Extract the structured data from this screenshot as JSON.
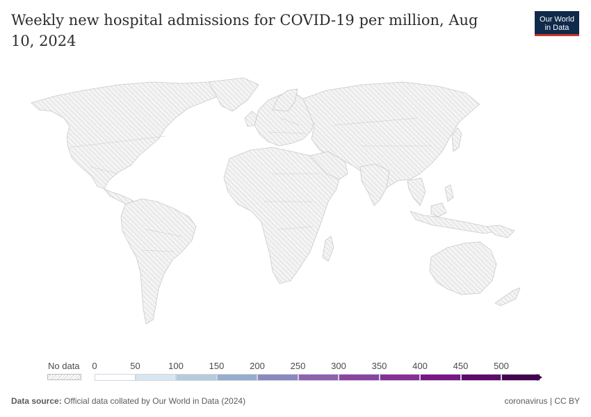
{
  "header": {
    "title": "Weekly new hospital admissions for COVID-19 per million, Aug 10, 2024",
    "logo_line1": "Our World",
    "logo_line2": "in Data"
  },
  "map": {
    "fill_pattern": "no-data-hatch",
    "land_color": "#e6e6e6",
    "border_color": "#bdbdbd"
  },
  "legend": {
    "no_data_label": "No data",
    "ticks": [
      "0",
      "50",
      "100",
      "150",
      "200",
      "250",
      "300",
      "350",
      "400",
      "450",
      "500"
    ],
    "bins": [
      {
        "from": 0,
        "to": 50,
        "color": "#ffffff"
      },
      {
        "from": 50,
        "to": 100,
        "color": "#d9e6ef"
      },
      {
        "from": 100,
        "to": 150,
        "color": "#b7cbdc"
      },
      {
        "from": 150,
        "to": 200,
        "color": "#96adcc"
      },
      {
        "from": 200,
        "to": 250,
        "color": "#8b89c0"
      },
      {
        "from": 250,
        "to": 300,
        "color": "#8f62ae"
      },
      {
        "from": 300,
        "to": 350,
        "color": "#8a45a2"
      },
      {
        "from": 350,
        "to": 400,
        "color": "#852f96"
      },
      {
        "from": 400,
        "to": 450,
        "color": "#7a1586"
      },
      {
        "from": 450,
        "to": 500,
        "color": "#5f0a6a"
      },
      {
        "from": 500,
        "to": null,
        "color": "#44034f"
      }
    ]
  },
  "footer": {
    "source_label": "Data source:",
    "source_text": "Official data collated by Our World in Data (2024)",
    "tags": "coronavirus | CC BY"
  }
}
